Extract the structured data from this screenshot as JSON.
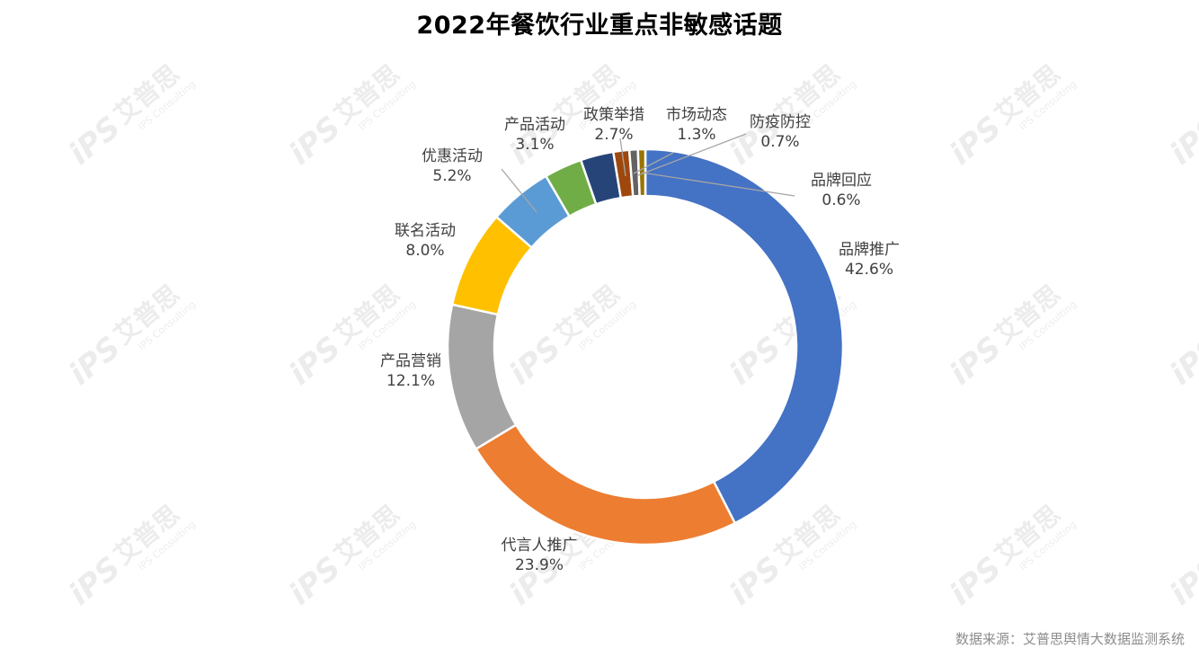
{
  "chart_data": {
    "type": "pie",
    "variant": "donut",
    "title": "2022年餐饮行业重点非敏感话题",
    "slices": [
      {
        "name": "品牌推广",
        "value": 42.6,
        "label": "42.6%",
        "color": "#4472C4"
      },
      {
        "name": "代言人推广",
        "value": 23.9,
        "label": "23.9%",
        "color": "#ED7D31"
      },
      {
        "name": "产品营销",
        "value": 12.1,
        "label": "12.1%",
        "color": "#A5A5A5"
      },
      {
        "name": "联名活动",
        "value": 8.0,
        "label": "8.0%",
        "color": "#FFC000"
      },
      {
        "name": "优惠活动",
        "value": 5.2,
        "label": "5.2%",
        "color": "#5B9BD5"
      },
      {
        "name": "产品活动",
        "value": 3.1,
        "label": "3.1%",
        "color": "#70AD47"
      },
      {
        "name": "政策举措",
        "value": 2.7,
        "label": "2.7%",
        "color": "#264478"
      },
      {
        "name": "市场动态",
        "value": 1.3,
        "label": "1.3%",
        "color": "#9E480E"
      },
      {
        "name": "防疫防控",
        "value": 0.7,
        "label": "0.7%",
        "color": "#636363"
      },
      {
        "name": "品牌回应",
        "value": 0.6,
        "label": "0.6%",
        "color": "#997300"
      }
    ],
    "legend": "none",
    "data_labels": "outside with leader lines"
  },
  "source": "数据来源：艾普思舆情大数据监测系统",
  "watermark": {
    "brand": "艾普思",
    "subtitle": "IPS Consulting",
    "logo": "iPS"
  }
}
